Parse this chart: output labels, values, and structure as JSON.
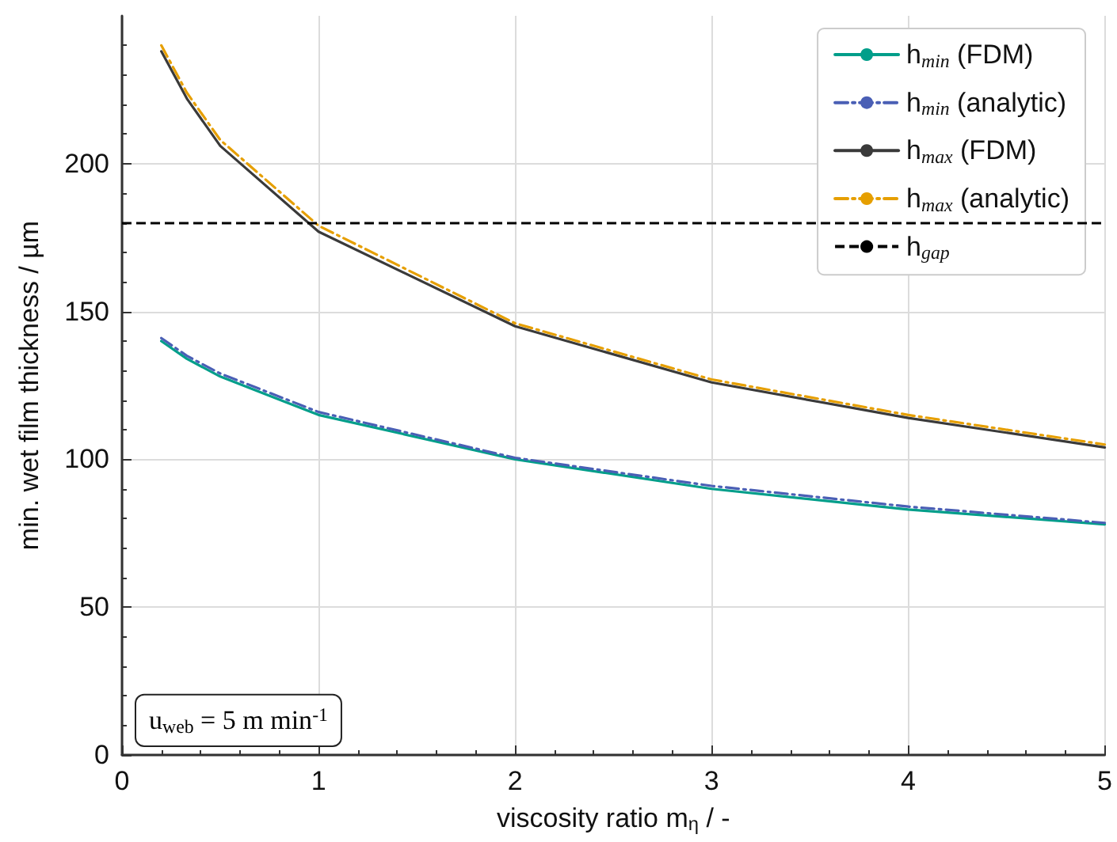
{
  "chart_data": {
    "type": "line",
    "xlabel": "viscosity ratio m$_{η}$ / -",
    "ylabel": "min. wet film thickness / µm",
    "series": [
      {
        "name": "h$_{min}$ (FDM)",
        "color": "#009e8a",
        "line_style": "solid",
        "x": [
          0.2,
          0.33,
          0.5,
          1,
          2,
          3,
          4,
          5
        ],
        "values": [
          140,
          134,
          128,
          115,
          100,
          90,
          83,
          78
        ]
      },
      {
        "name": "h$_{min}$ (analytic)",
        "color": "#4a5fb5",
        "line_style": "dashdot",
        "x": [
          0.2,
          0.33,
          0.5,
          1,
          2,
          3,
          4,
          5
        ],
        "values": [
          141,
          135,
          129,
          116,
          100.5,
          91,
          84,
          78.5
        ]
      },
      {
        "name": "h$_{max}$ (FDM)",
        "color": "#3a3a3a",
        "line_style": "solid",
        "x": [
          0.2,
          0.33,
          0.5,
          1,
          2,
          3,
          4,
          5
        ],
        "values": [
          238,
          222,
          206,
          177,
          145,
          126,
          114,
          104
        ]
      },
      {
        "name": "h$_{max}$ (analytic)",
        "color": "#e69f00",
        "line_style": "dashdot",
        "x": [
          0.2,
          0.33,
          0.5,
          1,
          2,
          3,
          4,
          5
        ],
        "values": [
          240,
          224,
          208,
          179,
          146,
          127,
          115,
          105
        ]
      }
    ],
    "ref_lines": [
      {
        "axis": "y",
        "value": 180,
        "label": "h$_{gap}$",
        "color": "#000000",
        "line_style": "dashed"
      }
    ],
    "annotations": [
      "u$_{web}$ = 5 m min$^{-1}$"
    ],
    "xlim": [
      0,
      5
    ],
    "xticks": [
      0,
      1,
      2,
      3,
      4,
      5
    ],
    "ylim": [
      0,
      250
    ],
    "yticks": [
      0,
      50,
      100,
      150,
      200
    ],
    "grid": true,
    "legend": "top right",
    "marker": "none"
  }
}
